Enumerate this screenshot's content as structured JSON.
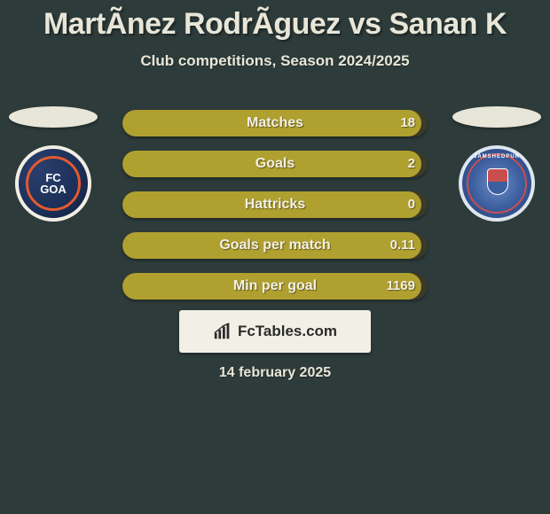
{
  "header": {
    "title": "MartÃnez RodrÃguez vs Sanan K",
    "subtitle": "Club competitions, Season 2024/2025"
  },
  "colors": {
    "background": "#2d3b3a",
    "bar_fill": "#b0a02f",
    "bar_track": "#3b3a28",
    "text_light": "#e8e6d8",
    "panel": "#f2f0e6"
  },
  "left_team": {
    "name": "FC Goa",
    "crest_text": "FC\nGOA",
    "crest_bg": "#1c2f58",
    "crest_accent": "#e25a2f"
  },
  "right_team": {
    "name": "Jamshedpur FC",
    "crest_text": "JAMSHEDPUR",
    "crest_bg": "#3d5fa0",
    "crest_accent": "#c94f4f"
  },
  "stats": [
    {
      "label": "Matches",
      "value": "18",
      "fill_pct": 98
    },
    {
      "label": "Goals",
      "value": "2",
      "fill_pct": 98
    },
    {
      "label": "Hattricks",
      "value": "0",
      "fill_pct": 98
    },
    {
      "label": "Goals per match",
      "value": "0.11",
      "fill_pct": 98
    },
    {
      "label": "Min per goal",
      "value": "1169",
      "fill_pct": 98
    }
  ],
  "branding": {
    "text": "FcTables.com"
  },
  "date": "14 february 2025",
  "typography": {
    "title_size_pt": 26,
    "subtitle_size_pt": 13,
    "stat_label_size_pt": 12,
    "date_size_pt": 12
  }
}
